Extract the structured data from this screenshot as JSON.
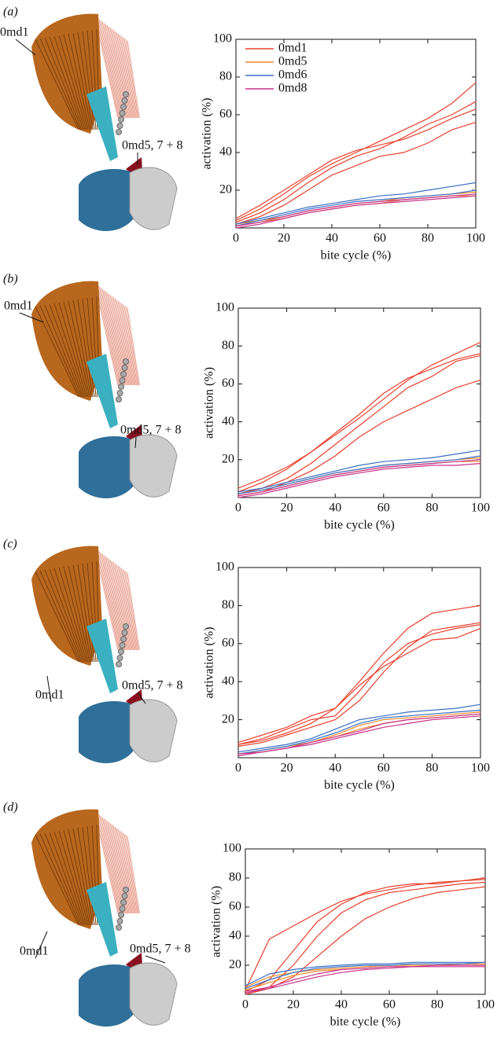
{
  "chart_data": [
    {
      "type": "line",
      "panel_label": "(a)",
      "annotations": [
        "0md1",
        "0md5, 7 + 8"
      ],
      "x_label": "bite cycle (%)",
      "y_label": "activation (%)",
      "x": [
        0,
        10,
        20,
        30,
        40,
        50,
        60,
        70,
        80,
        90,
        100
      ],
      "xlim": [
        0,
        100
      ],
      "ylim": [
        0,
        100
      ],
      "xticks": [
        0,
        20,
        40,
        60,
        80,
        100
      ],
      "yticks": [
        20,
        40,
        60,
        80,
        100
      ],
      "series": [
        {
          "name": "0md1",
          "color": "#e8412c",
          "lines": [
            [
              4,
              10,
              18,
              27,
              34,
              40,
              46,
              52,
              58,
              66,
              77
            ],
            [
              3,
              8,
              15,
              24,
              32,
              38,
              42,
              48,
              55,
              60,
              67
            ],
            [
              5,
              12,
              20,
              28,
              36,
              41,
              44,
              47,
              52,
              58,
              63
            ],
            [
              2,
              6,
              12,
              20,
              28,
              33,
              38,
              40,
              45,
              52,
              56
            ]
          ]
        },
        {
          "name": "0md5",
          "color": "#ee8a2e",
          "lines": [
            [
              2,
              4,
              6,
              9,
              11,
              13,
              14,
              16,
              17,
              18,
              19
            ],
            [
              1,
              3,
              5,
              8,
              10,
              12,
              13,
              15,
              16,
              17,
              17
            ]
          ]
        },
        {
          "name": "0md6",
          "color": "#3a6fc4",
          "lines": [
            [
              2,
              5,
              8,
              11,
              13,
              15,
              17,
              18,
              20,
              22,
              24
            ],
            [
              1,
              4,
              7,
              10,
              12,
              14,
              15,
              16,
              17,
              18,
              20
            ]
          ]
        },
        {
          "name": "0md8",
          "color": "#c8328a",
          "lines": [
            [
              1,
              3,
              6,
              9,
              11,
              13,
              14,
              15,
              16,
              17,
              18
            ],
            [
              0,
              2,
              5,
              8,
              10,
              12,
              13,
              14,
              15,
              16,
              17
            ]
          ]
        }
      ]
    },
    {
      "type": "line",
      "panel_label": "(b)",
      "annotations": [
        "0md1",
        "0md5, 7 + 8"
      ],
      "x_label": "bite cycle (%)",
      "y_label": "activation (%)",
      "x": [
        0,
        10,
        20,
        30,
        40,
        50,
        60,
        70,
        80,
        90,
        100
      ],
      "xlim": [
        0,
        100
      ],
      "ylim": [
        0,
        100
      ],
      "xticks": [
        0,
        20,
        40,
        60,
        80,
        100
      ],
      "yticks": [
        20,
        40,
        60,
        80,
        100
      ],
      "series": [
        {
          "color": "#e8412c",
          "lines": [
            [
              3,
              8,
              15,
              24,
              33,
              42,
              52,
              62,
              70,
              76,
              82
            ],
            [
              5,
              10,
              16,
              24,
              34,
              44,
              55,
              63,
              68,
              73,
              76
            ],
            [
              2,
              5,
              10,
              18,
              28,
              38,
              48,
              58,
              64,
              72,
              75
            ],
            [
              1,
              3,
              8,
              14,
              22,
              32,
              40,
              46,
              52,
              58,
              62
            ]
          ]
        },
        {
          "color": "#ee8a2e",
          "lines": [
            [
              2,
              4,
              7,
              10,
              13,
              15,
              17,
              18,
              19,
              20,
              21
            ],
            [
              1,
              3,
              6,
              9,
              12,
              14,
              16,
              17,
              18,
              19,
              19
            ]
          ]
        },
        {
          "color": "#3a6fc4",
          "lines": [
            [
              3,
              5,
              8,
              11,
              14,
              17,
              19,
              20,
              21,
              23,
              25
            ],
            [
              2,
              4,
              7,
              10,
              13,
              15,
              17,
              18,
              19,
              20,
              22
            ]
          ]
        },
        {
          "color": "#c8328a",
          "lines": [
            [
              1,
              3,
              6,
              9,
              12,
              14,
              16,
              17,
              18,
              19,
              20
            ],
            [
              0,
              2,
              5,
              8,
              11,
              13,
              15,
              16,
              17,
              17,
              18
            ]
          ]
        }
      ]
    },
    {
      "type": "line",
      "panel_label": "(c)",
      "annotations": [
        "0md1",
        "0md5, 7 + 8"
      ],
      "x_label": "bite cycle (%)",
      "y_label": "activation (%)",
      "x": [
        0,
        10,
        20,
        30,
        40,
        50,
        60,
        70,
        80,
        90,
        100
      ],
      "xlim": [
        0,
        100
      ],
      "ylim": [
        0,
        100
      ],
      "xticks": [
        0,
        20,
        40,
        60,
        80,
        100
      ],
      "yticks": [
        20,
        40,
        60,
        80,
        100
      ],
      "series": [
        {
          "color": "#e8412c",
          "lines": [
            [
              7,
              9,
              13,
              18,
              26,
              40,
              55,
              68,
              76,
              78,
              80
            ],
            [
              7,
              10,
              15,
              20,
              22,
              35,
              50,
              60,
              65,
              68,
              70
            ],
            [
              8,
              12,
              16,
              22,
              26,
              38,
              48,
              55,
              62,
              63,
              68
            ],
            [
              6,
              8,
              12,
              16,
              20,
              30,
              45,
              58,
              67,
              69,
              71
            ]
          ]
        },
        {
          "color": "#ee8a2e",
          "lines": [
            [
              2,
              4,
              6,
              8,
              12,
              17,
              20,
              21,
              22,
              23,
              24
            ],
            [
              2,
              3,
              5,
              8,
              11,
              15,
              18,
              20,
              21,
              22,
              23
            ]
          ]
        },
        {
          "color": "#3a6fc4",
          "lines": [
            [
              3,
              5,
              7,
              10,
              15,
              20,
              22,
              24,
              25,
              26,
              28
            ],
            [
              2,
              4,
              6,
              9,
              13,
              18,
              21,
              22,
              23,
              24,
              25
            ]
          ]
        },
        {
          "color": "#c8328a",
          "lines": [
            [
              2,
              3,
              5,
              8,
              11,
              14,
              18,
              20,
              21,
              22,
              23
            ],
            [
              1,
              3,
              5,
              7,
              10,
              13,
              16,
              18,
              20,
              21,
              22
            ]
          ]
        }
      ]
    },
    {
      "type": "line",
      "panel_label": "(d)",
      "annotations": [
        "0md1",
        "0md5, 7 + 8"
      ],
      "x_label": "bite cycle (%)",
      "y_label": "activation (%)",
      "x": [
        0,
        10,
        20,
        30,
        40,
        50,
        60,
        70,
        80,
        90,
        100
      ],
      "xlim": [
        0,
        100
      ],
      "ylim": [
        0,
        100
      ],
      "xticks": [
        0,
        20,
        40,
        60,
        80,
        100
      ],
      "yticks": [
        20,
        40,
        60,
        80,
        100
      ],
      "series": [
        {
          "color": "#e8412c",
          "lines": [
            [
              3,
              38,
              47,
              56,
              64,
              69,
              72,
              75,
              77,
              78,
              80
            ],
            [
              2,
              10,
              30,
              50,
              62,
              70,
              74,
              76,
              76,
              78,
              79
            ],
            [
              1,
              5,
              20,
              40,
              56,
              65,
              70,
              72,
              74,
              76,
              77
            ],
            [
              0,
              4,
              12,
              26,
              40,
              52,
              60,
              66,
              70,
              72,
              74
            ]
          ]
        },
        {
          "color": "#ee8a2e",
          "lines": [
            [
              5,
              12,
              15,
              17,
              18,
              19,
              20,
              20,
              20,
              21,
              21
            ],
            [
              3,
              8,
              13,
              16,
              17,
              18,
              19,
              19,
              20,
              20,
              20
            ]
          ]
        },
        {
          "color": "#3a6fc4",
          "lines": [
            [
              6,
              14,
              17,
              19,
              20,
              21,
              21,
              22,
              22,
              22,
              22
            ],
            [
              4,
              10,
              15,
              18,
              19,
              20,
              20,
              21,
              21,
              21,
              22
            ]
          ]
        },
        {
          "color": "#c8328a",
          "lines": [
            [
              2,
              5,
              10,
              14,
              17,
              18,
              19,
              19,
              20,
              20,
              20
            ],
            [
              1,
              4,
              8,
              12,
              15,
              17,
              18,
              19,
              19,
              19,
              19
            ]
          ]
        }
      ]
    }
  ]
}
